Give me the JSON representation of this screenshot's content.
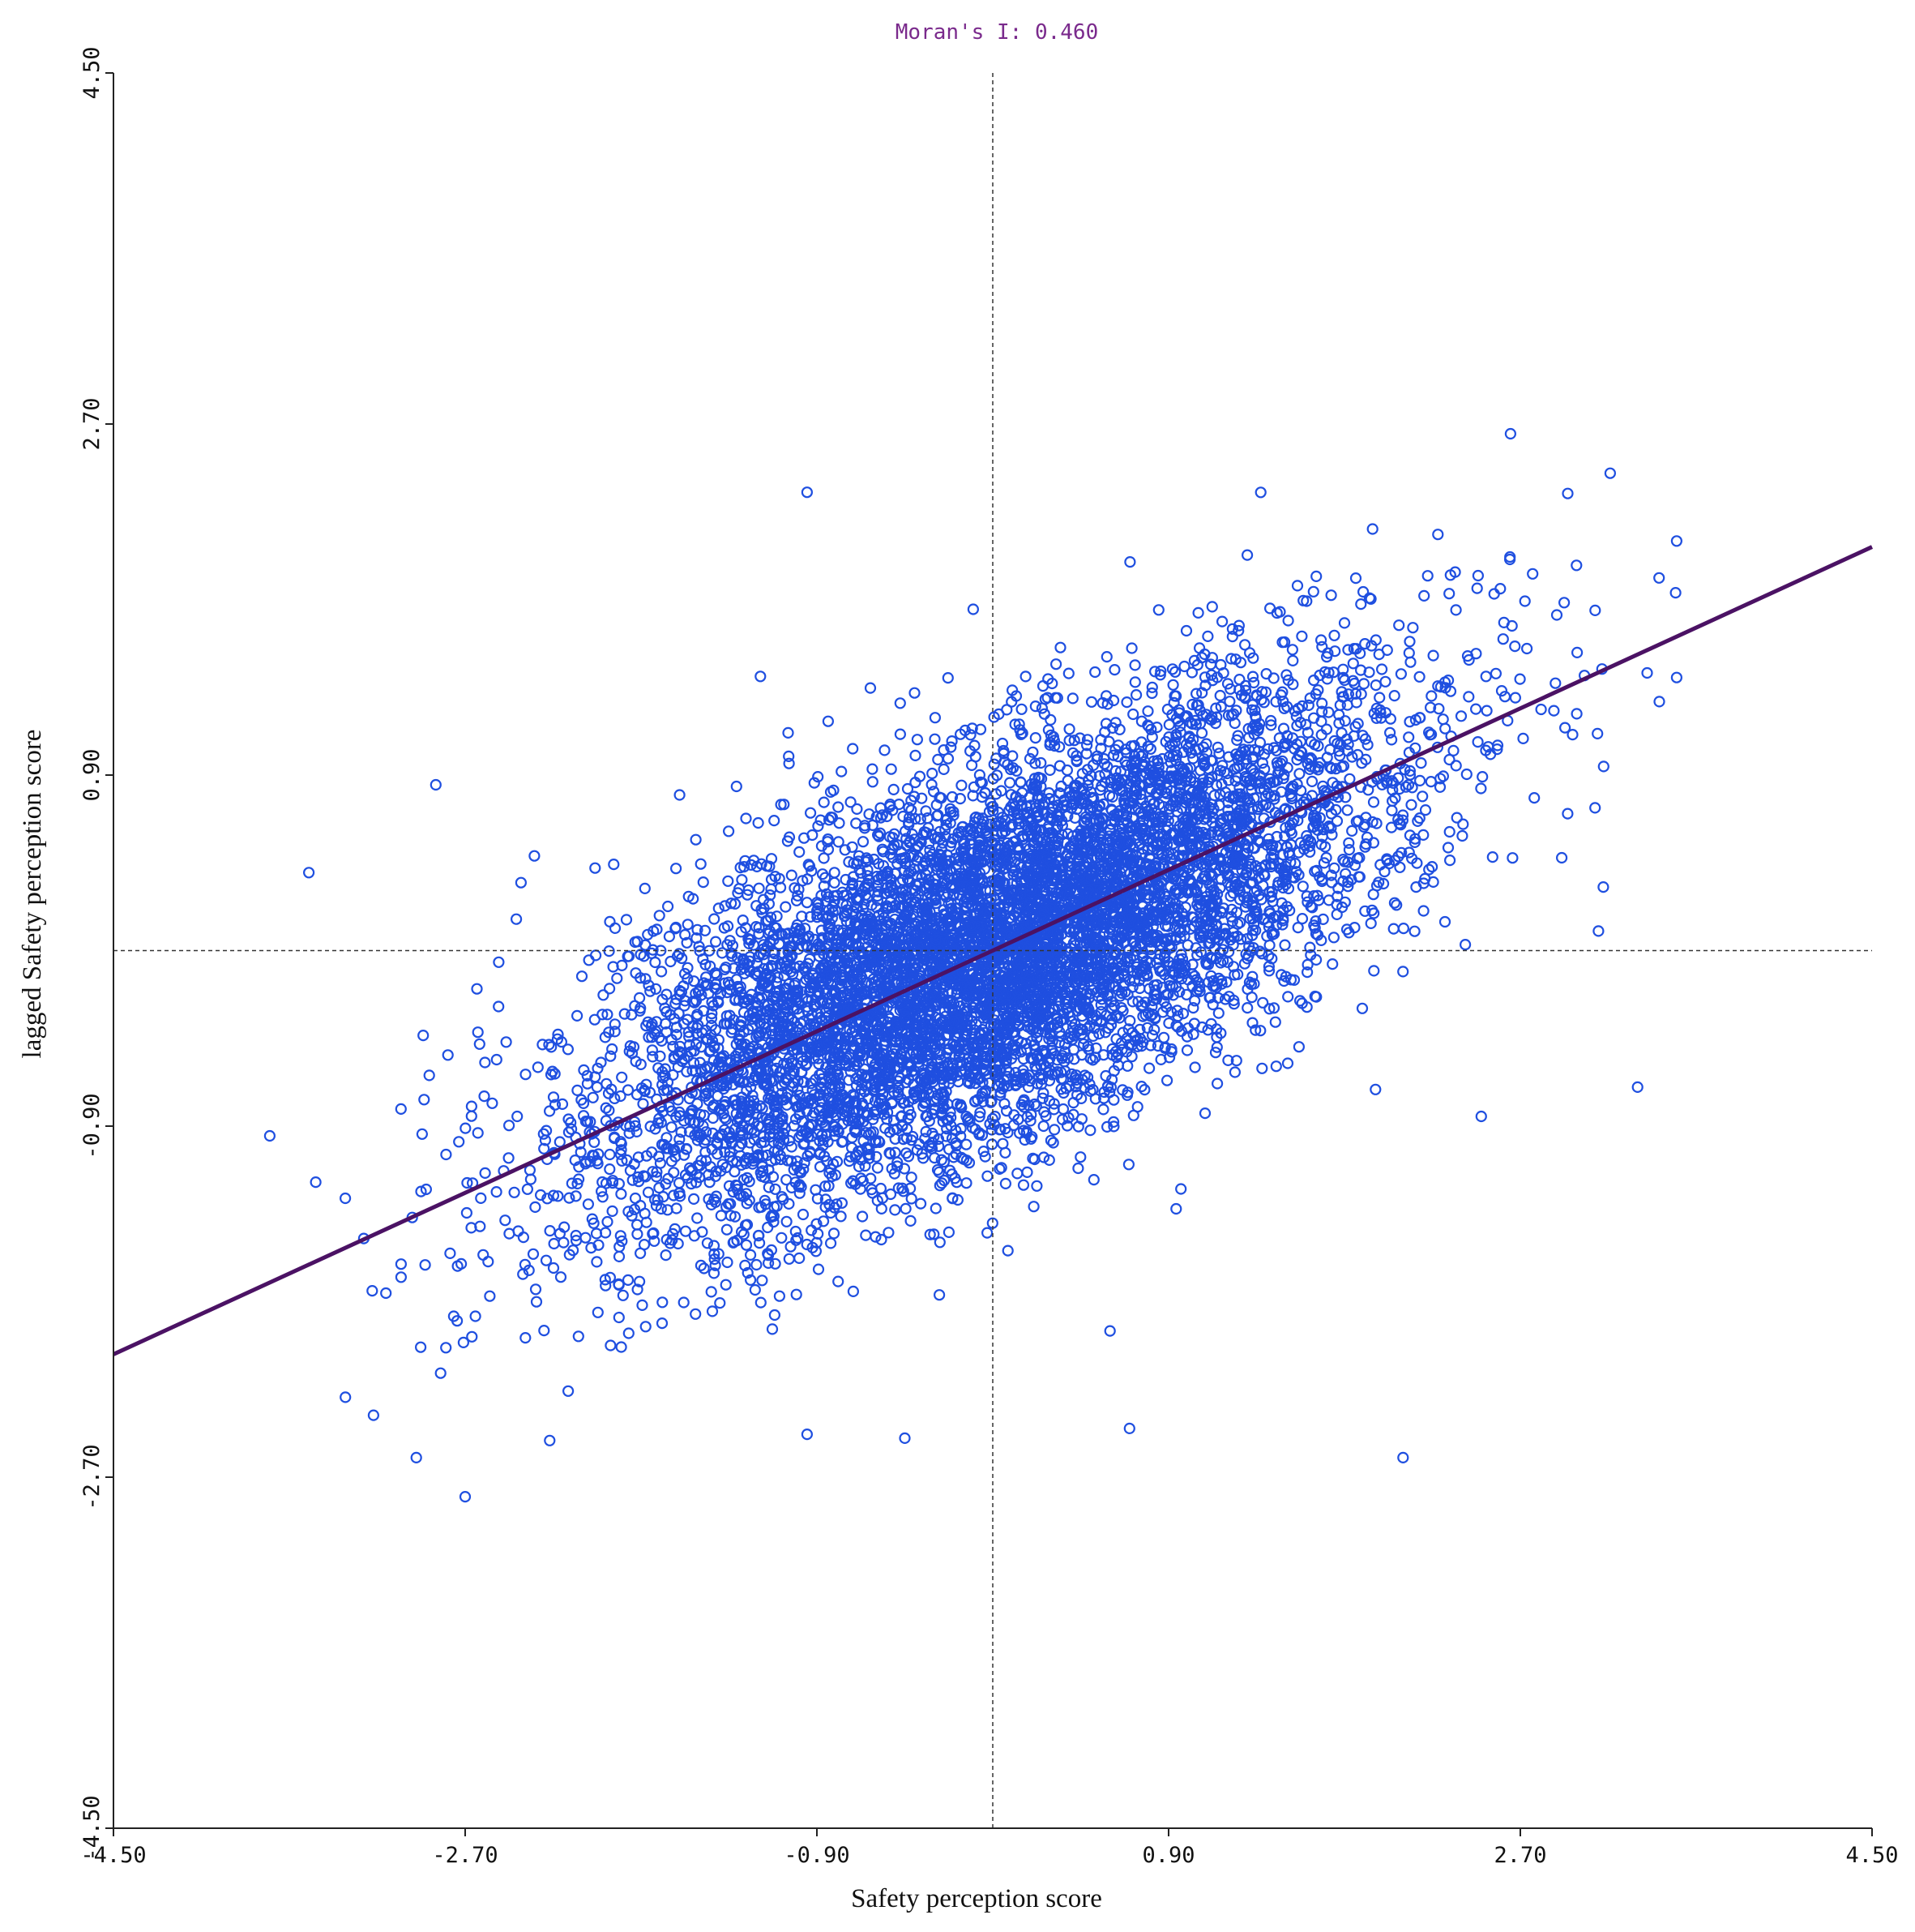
{
  "chart_data": {
    "type": "scatter",
    "title": "Moran's I: 0.460",
    "xlabel": "Safety perception score",
    "ylabel": "lagged Safety perception score",
    "xlim": [
      -4.5,
      4.5
    ],
    "ylim": [
      -4.5,
      4.5
    ],
    "xticks": [
      "-4.50",
      "-2.70",
      "-0.90",
      "0.90",
      "2.70",
      "4.50"
    ],
    "yticks": [
      "-4.50",
      "-2.70",
      "-0.90",
      "0.90",
      "2.70",
      "4.50"
    ],
    "grid": false,
    "reference_lines": {
      "x": 0,
      "y": 0
    },
    "regression_line": {
      "slope": 0.46,
      "intercept": 0.0,
      "label": "Moran's I: 0.460"
    },
    "point_summary": {
      "approx_count": 8000,
      "x_mean": 0.0,
      "x_sd": 1.0,
      "y_mean": 0.0,
      "y_sd": 0.67,
      "correlation": 0.69,
      "x_range": [
        -3.7,
        3.5
      ],
      "y_range": [
        -2.8,
        2.7
      ]
    },
    "series": [
      {
        "marker": "open-circle",
        "color": "#1f4fe0"
      }
    ],
    "outliers": [
      {
        "x": -0.95,
        "y": 2.35
      },
      {
        "x": -0.1,
        "y": 1.75
      },
      {
        "x": 2.65,
        "y": 2.65
      },
      {
        "x": 3.5,
        "y": 2.1
      },
      {
        "x": 3.5,
        "y": 1.4
      },
      {
        "x": 3.3,
        "y": -0.7
      },
      {
        "x": 2.1,
        "y": -2.6
      },
      {
        "x": -2.7,
        "y": -2.8
      },
      {
        "x": -2.95,
        "y": -2.6
      },
      {
        "x": 0.7,
        "y": -2.45
      },
      {
        "x": -0.95,
        "y": -2.48
      },
      {
        "x": -0.45,
        "y": -2.5
      },
      {
        "x": -3.5,
        "y": 0.4
      },
      {
        "x": -2.85,
        "y": 0.85
      },
      {
        "x": 3.1,
        "y": 0.1
      },
      {
        "x": -3.7,
        "y": -0.95
      },
      {
        "x": 2.5,
        "y": -0.85
      },
      {
        "x": 0.6,
        "y": -1.95
      }
    ],
    "colors": {
      "points": "#1f4fe0",
      "regression": "#4b1264",
      "title": "#7a2a8c",
      "axes": "#222222"
    }
  }
}
